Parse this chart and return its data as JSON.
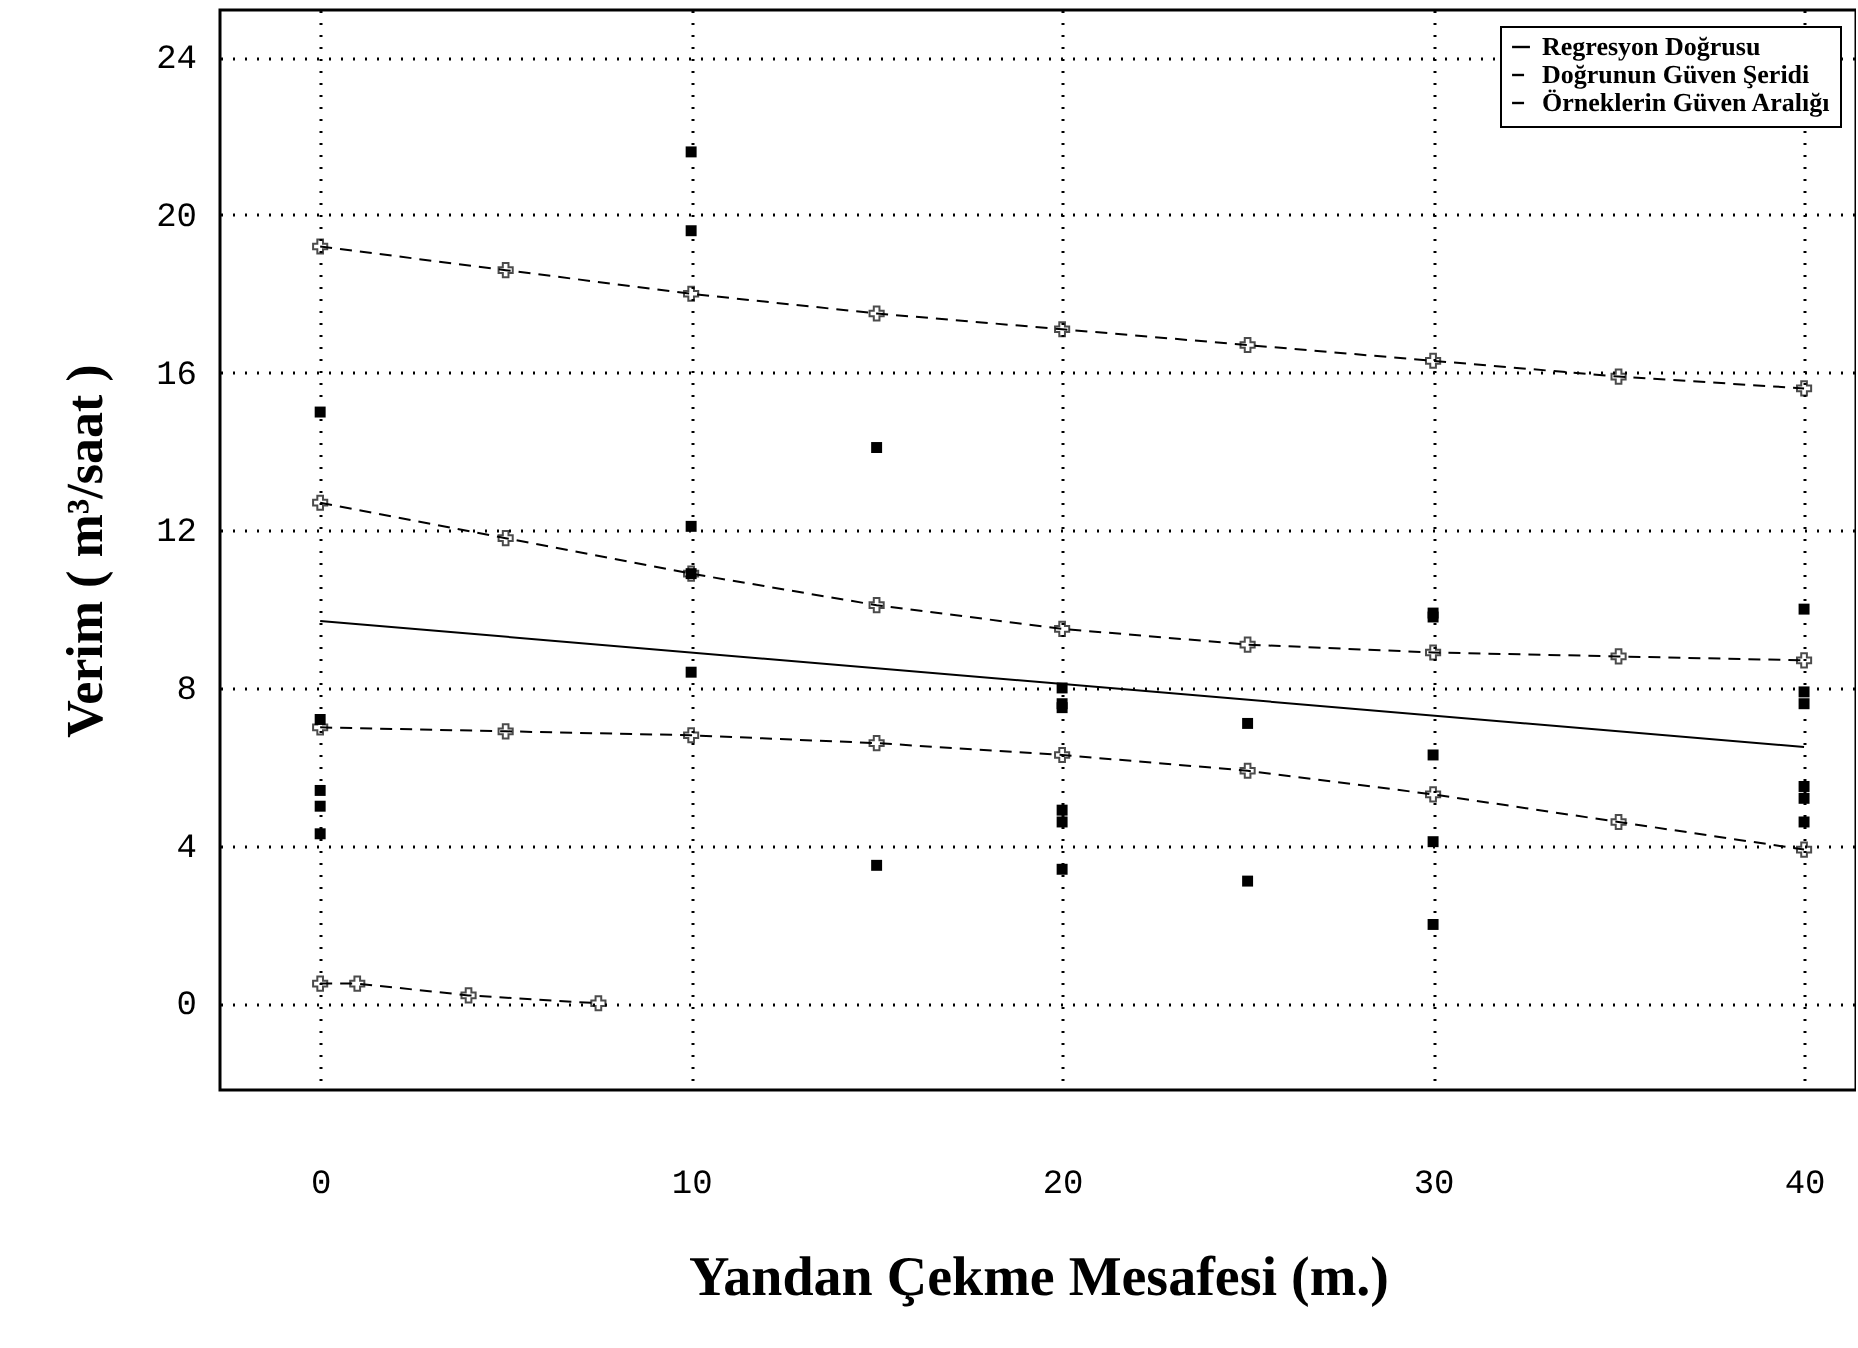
{
  "chart_data": {
    "type": "line",
    "xlabel": "Yandan Çekme Mesafesi (m.)",
    "ylabel": "Verim ( m³/saat )",
    "xlim": [
      -2.7,
      41.4
    ],
    "ylim": [
      -2.2,
      25.2
    ],
    "xticks": [
      0,
      10,
      20,
      30,
      40
    ],
    "yticks": [
      0,
      4,
      8,
      12,
      16,
      20,
      24
    ],
    "grid": true,
    "legend": "top right",
    "series": [
      {
        "name": "Regresyon Doğrusu",
        "type": "line",
        "color": "#000000",
        "line_style": "solid",
        "marker": "none",
        "x": [
          0,
          40
        ],
        "values": [
          9.7,
          6.5
        ]
      },
      {
        "name": "Doğrunun Güven Şeridi",
        "type": "line",
        "color": "#000000",
        "line_style": "dashed",
        "marker": "cross",
        "x": [
          0,
          5,
          10,
          15,
          20,
          25,
          30,
          35,
          40
        ],
        "values": [
          12.7,
          11.8,
          10.9,
          10.1,
          9.5,
          9.1,
          8.9,
          8.8,
          8.7
        ]
      },
      {
        "type": "line",
        "color": "#000000",
        "line_style": "dashed",
        "marker": "cross",
        "x": [
          0,
          5,
          10,
          15,
          20,
          25,
          30,
          35,
          40
        ],
        "values": [
          7.0,
          6.9,
          6.8,
          6.6,
          6.3,
          5.9,
          5.3,
          4.6,
          3.9
        ]
      },
      {
        "name": "Örneklerin Güven Aralığı",
        "type": "line",
        "color": "#000000",
        "line_style": "dashed",
        "marker": "cross",
        "x": [
          0,
          5,
          10,
          15,
          20,
          25,
          30,
          35,
          40
        ],
        "values": [
          19.2,
          18.6,
          18.0,
          17.5,
          17.1,
          16.7,
          16.3,
          15.9,
          15.6
        ]
      },
      {
        "type": "line",
        "color": "#000000",
        "line_style": "dashed",
        "marker": "cross",
        "x": [
          0,
          1,
          4,
          7.5
        ],
        "values": [
          0.5,
          0.5,
          0.2,
          0.0
        ]
      },
      {
        "type": "scatter",
        "color": "#000000",
        "marker": "square",
        "x": [
          0,
          0,
          0,
          0,
          0,
          10,
          10,
          10,
          10,
          10,
          15,
          15,
          20,
          20,
          20,
          20,
          20,
          20,
          25,
          25,
          30,
          30,
          30,
          30,
          30,
          40,
          40,
          40,
          40,
          40,
          40
        ],
        "values": [
          15.0,
          7.2,
          5.4,
          5.0,
          4.3,
          21.6,
          19.6,
          12.1,
          10.9,
          8.4,
          14.1,
          3.5,
          8.0,
          7.6,
          7.5,
          4.9,
          4.6,
          3.4,
          7.1,
          3.1,
          9.9,
          9.8,
          6.3,
          4.1,
          2.0,
          10.0,
          7.9,
          7.6,
          5.5,
          5.2,
          4.6
        ]
      }
    ]
  }
}
